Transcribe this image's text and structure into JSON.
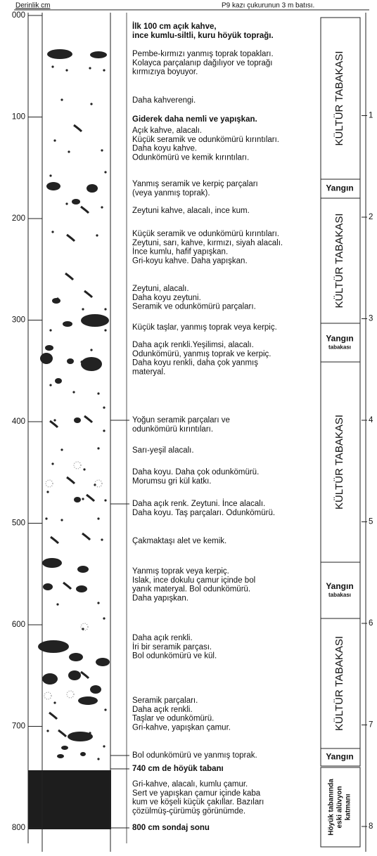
{
  "header": {
    "depth_label": "Derinlik cm",
    "location": "P9 kazı çukurunun 3 m batısı."
  },
  "depth_scale": [
    "000",
    "100",
    "200",
    "300",
    "400",
    "500",
    "600",
    "700",
    "800"
  ],
  "right_scale": [
    "1",
    "2",
    "3",
    "4",
    "5",
    "6",
    "7",
    "8"
  ],
  "descriptions": [
    {
      "lines": [
        "İlk 100 cm açık kahve,",
        "ince kumlu-siltli, kuru höyük toprağı."
      ]
    },
    {
      "lines": [
        "Pembe-kırmızı yanmış toprak topakları.",
        "Kolayca parçalanıp dağılıyor ve toprağı",
        "kırmızıya boyuyor."
      ]
    },
    {
      "lines": [
        "Daha kahverengi."
      ]
    },
    {
      "lines": [
        "Giderek daha nemli ve yapışkan."
      ]
    },
    {
      "lines": [
        "Açık kahve, alacalı.",
        "Küçük seramik ve odunkömürü kırıntıları.",
        "Daha koyu kahve.",
        "Odunkömürü ve kemik kırıntıları."
      ]
    },
    {
      "lines": [
        "Yanmış seramik ve kerpiç parçaları",
        "(veya yanmış toprak)."
      ]
    },
    {
      "lines": [
        "Zeytuni kahve, alacalı, ince kum."
      ]
    },
    {
      "lines": [
        "Küçük seramik ve odunkömürü kırıntıları.",
        "Zeytuni, sarı, kahve, kırmızı, siyah alacalı.",
        "İnce kumlu, hafif yapışkan.",
        "Gri-koyu kahve. Daha yapışkan."
      ]
    },
    {
      "lines": [
        "Zeytuni, alacalı.",
        "Daha koyu zeytuni.",
        "Seramik ve odunkömürü parçaları."
      ]
    },
    {
      "lines": [
        "Küçük taşlar, yanmış toprak veya kerpiç."
      ]
    },
    {
      "lines": [
        "Daha açık renkli.Yeşilimsi, alacalı.",
        "Odunkömürü, yanmış toprak ve kerpiç.",
        "Daha koyu renkli, daha çok yanmış",
        "materyal."
      ]
    },
    {
      "lines": [
        "Yoğun seramik parçaları ve",
        "odunkömürü kırıntıları."
      ]
    },
    {
      "lines": [
        "Sarı-yeşil alacalı."
      ]
    },
    {
      "lines": [
        "Daha koyu. Daha çok odunkömürü.",
        "Morumsu gri kül katkı."
      ]
    },
    {
      "lines": [
        "Daha açık renk. Zeytuni. İnce alacalı.",
        "Daha koyu. Taş parçaları. Odunkömürü."
      ]
    },
    {
      "lines": [
        "Çakmaktaşı alet ve kemik."
      ]
    },
    {
      "lines": [
        "Yanmış toprak veya kerpiç.",
        "Islak, ince dokulu çamur içinde bol",
        "yanık materyal. Bol odunkömürü.",
        "Daha yapışkan."
      ]
    },
    {
      "lines": [
        "Daha açık renkli.",
        "İri bir seramik parçası.",
        "Bol odunkömürü ve kül."
      ]
    },
    {
      "lines": [
        "Seramik parçaları.",
        "Daha açık renkli.",
        "Taşlar ve odunkömürü.",
        "Gri-kahve, yapışkan çamur."
      ]
    },
    {
      "lines": [
        "Bol odunkömürü ve yanmış toprak."
      ]
    },
    {
      "lines": [
        "740 cm de höyük tabanı"
      ]
    },
    {
      "lines": [
        "Gri-kahve, alacalı, kumlu çamur.",
        "Sert ve yapışkan çamur içinde kaba",
        "kum ve köşeli küçük çakıllar. Bazıları",
        "çözülmüş-çürümüş görünümde."
      ]
    },
    {
      "lines": [
        "800 cm sondaj sonu"
      ]
    }
  ],
  "layers": [
    {
      "lines": [
        "KÜLTÜR TABAKASI"
      ]
    },
    {
      "lines": [
        "Yangın"
      ]
    },
    {
      "lines": [
        "KÜLTÜR TABAKASI"
      ]
    },
    {
      "lines": [
        "Yangın",
        "tabakası"
      ]
    },
    {
      "lines": [
        "KÜLTÜR TABAKASI"
      ]
    },
    {
      "lines": [
        "Yangın",
        "tabakası"
      ]
    },
    {
      "lines": [
        "KÜLTÜR TABAKASI"
      ]
    },
    {
      "lines": [
        "Yangın"
      ]
    },
    {
      "lines": [
        "Höyük tabanında",
        "eski alüvyon",
        "katmanı"
      ]
    }
  ]
}
